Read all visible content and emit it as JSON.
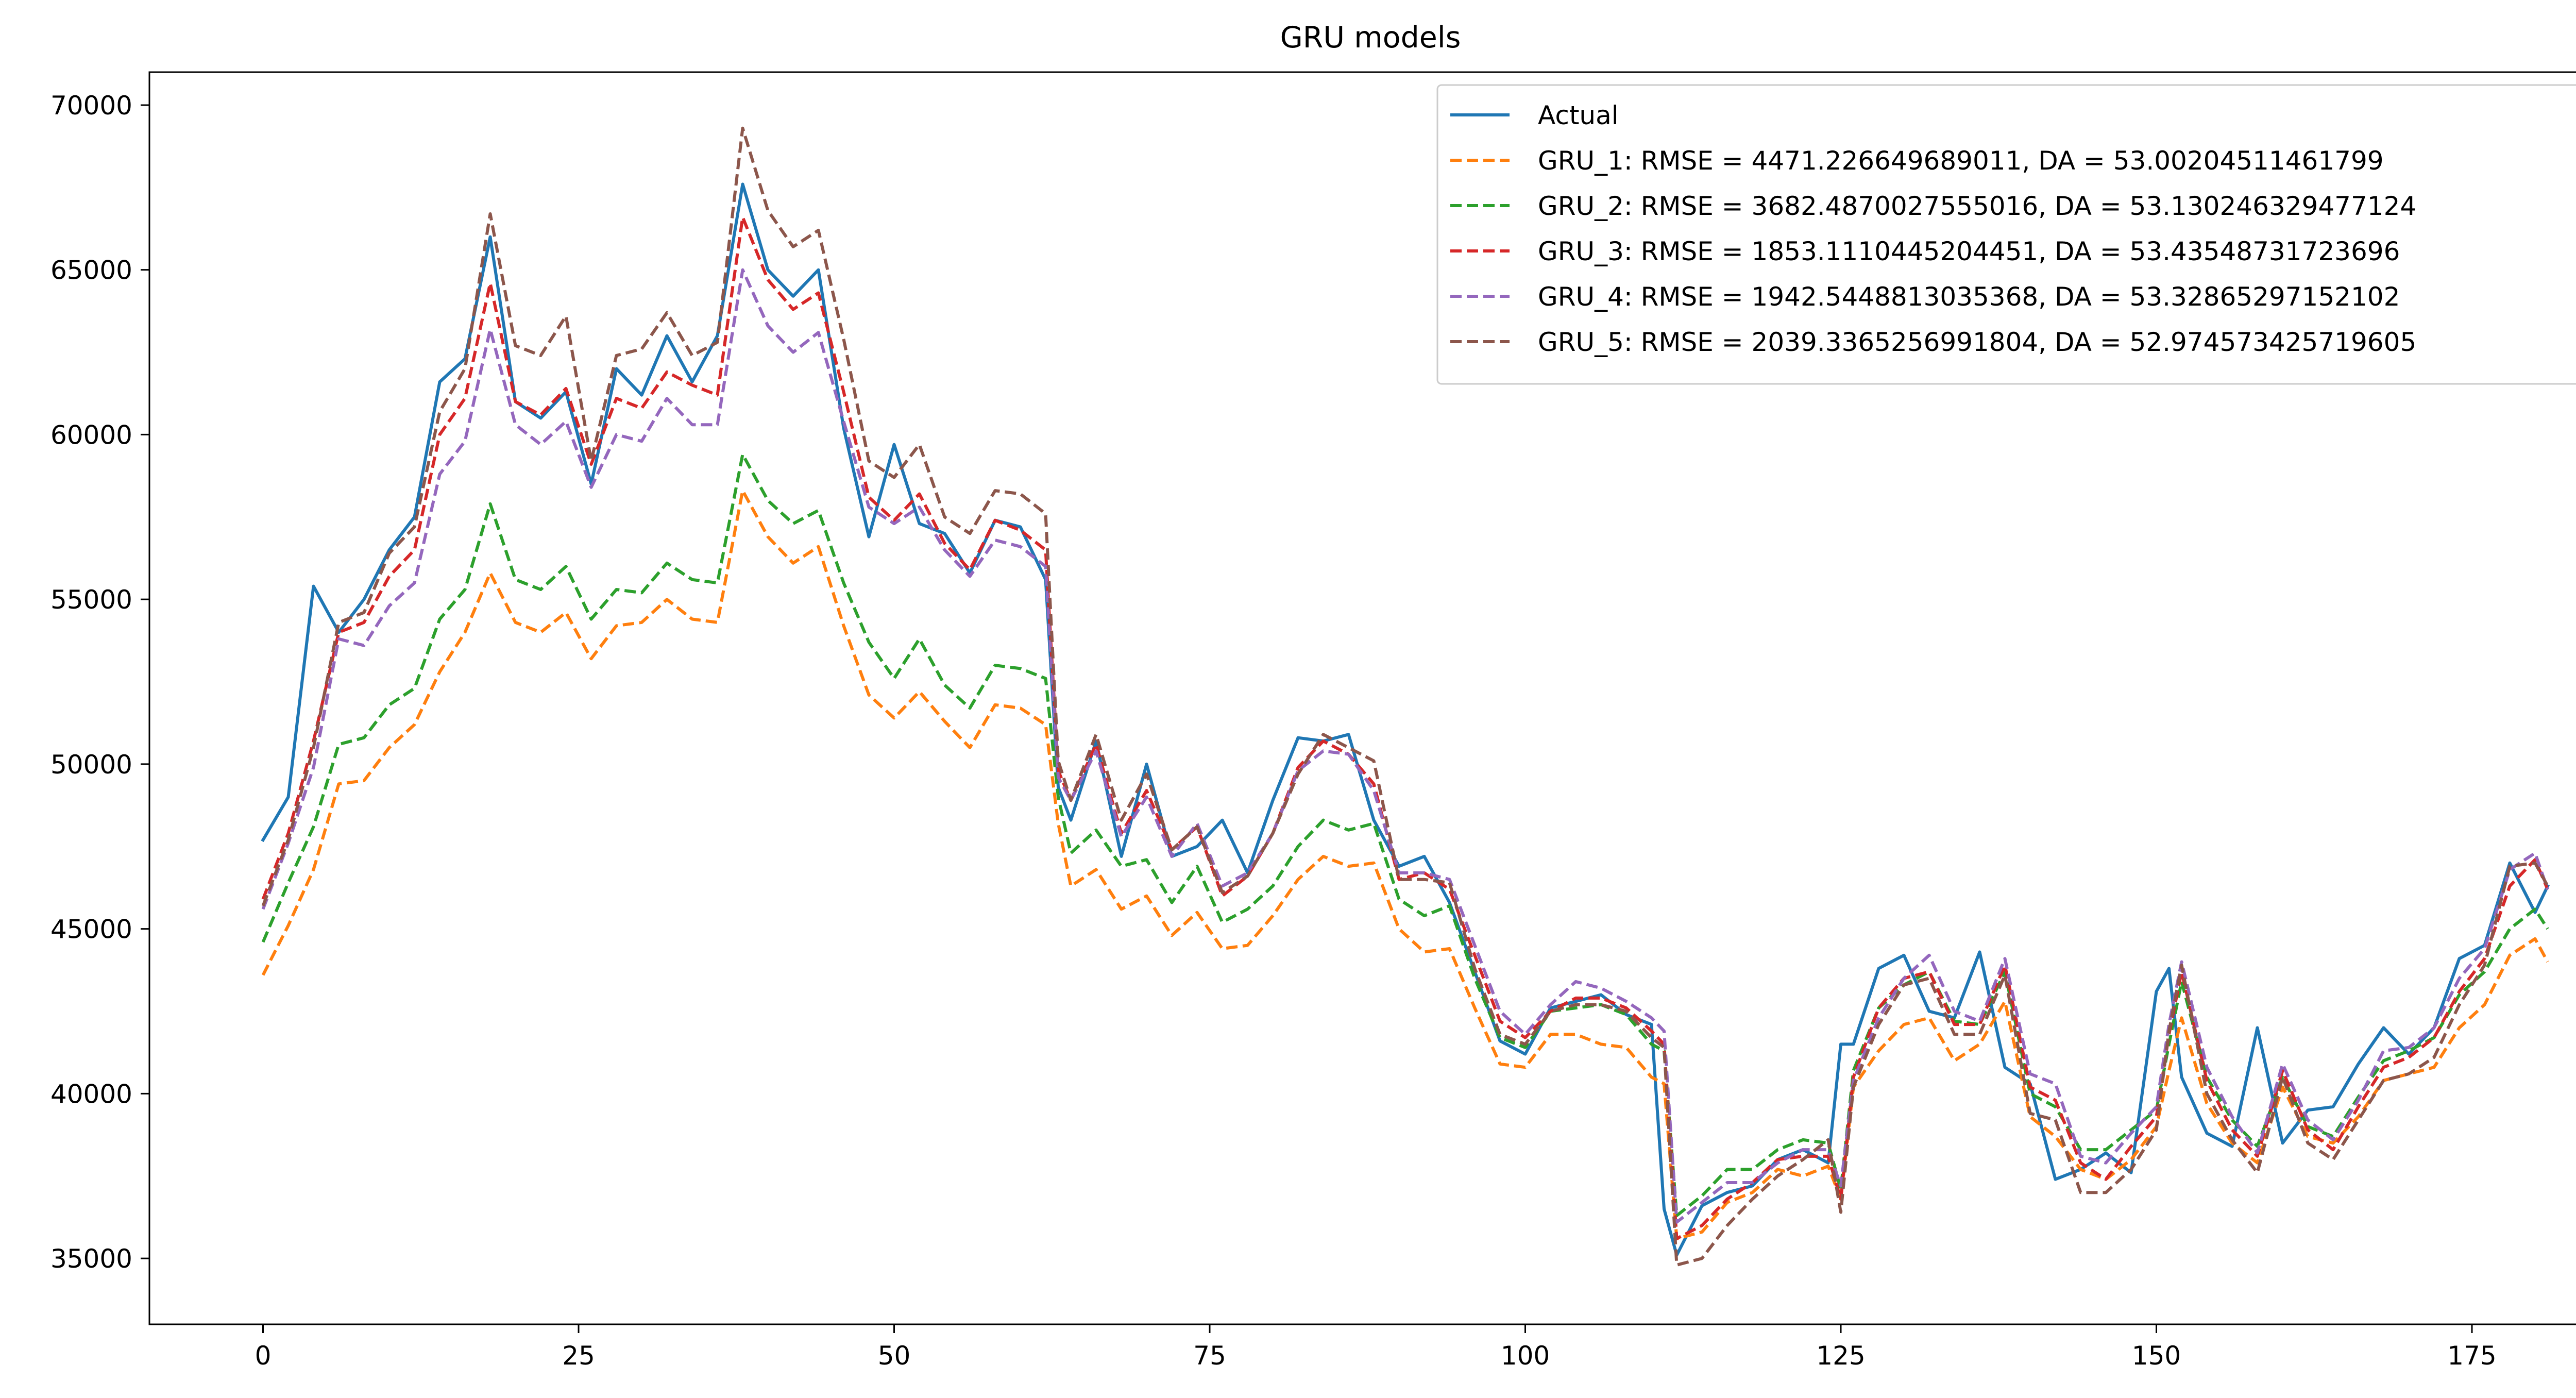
{
  "chart_data": {
    "type": "line",
    "title": "GRU models",
    "xlabel": "",
    "ylabel": "",
    "xlim": [
      -9,
      191
    ],
    "ylim": [
      33000,
      71000
    ],
    "xticks": [
      0,
      25,
      50,
      75,
      100,
      125,
      150,
      175
    ],
    "yticks": [
      35000,
      40000,
      45000,
      50000,
      55000,
      60000,
      65000,
      70000
    ],
    "grid": false,
    "legend_position": "top-right",
    "series": [
      {
        "name": "Actual",
        "color": "#1f77b4",
        "dash": "solid",
        "x": [
          0,
          2,
          4,
          6,
          8,
          10,
          12,
          14,
          16,
          18,
          20,
          22,
          24,
          26,
          28,
          30,
          32,
          34,
          36,
          38,
          40,
          42,
          44,
          46,
          48,
          50,
          52,
          54,
          56,
          58,
          60,
          62,
          63,
          64,
          66,
          68,
          70,
          72,
          74,
          76,
          78,
          80,
          82,
          84,
          86,
          88,
          90,
          92,
          94,
          96,
          98,
          100,
          102,
          104,
          106,
          108,
          110,
          111,
          112,
          114,
          116,
          118,
          120,
          122,
          124,
          125,
          126,
          128,
          130,
          132,
          134,
          136,
          138,
          140,
          142,
          144,
          146,
          148,
          150,
          151,
          152,
          154,
          156,
          158,
          160,
          162,
          164,
          166,
          168,
          170,
          172,
          174,
          176,
          178,
          180,
          181
        ],
        "values": [
          47700,
          49000,
          55400,
          54000,
          55000,
          56500,
          57500,
          61600,
          62300,
          66000,
          61000,
          60500,
          61300,
          58500,
          62000,
          61200,
          63000,
          61600,
          63000,
          67600,
          65000,
          64200,
          65000,
          60200,
          56900,
          59700,
          57300,
          57000,
          55800,
          57400,
          57200,
          55600,
          49300,
          48300,
          50700,
          47200,
          50000,
          47200,
          47500,
          48300,
          46700,
          48900,
          50800,
          50700,
          50900,
          48300,
          46900,
          47200,
          45800,
          43700,
          41600,
          41200,
          42600,
          42800,
          43000,
          42400,
          42100,
          36500,
          35100,
          36600,
          37000,
          37200,
          38000,
          38300,
          37900,
          41500,
          41500,
          43800,
          44200,
          42500,
          42300,
          44300,
          40800,
          40300,
          37400,
          37700,
          38200,
          37600,
          43100,
          43800,
          40500,
          38800,
          38400,
          42000,
          38500,
          39500,
          39600,
          40900,
          42000,
          41200,
          42000,
          44100,
          44500,
          47000,
          45500,
          46300
        ]
      },
      {
        "name": "GRU_1: RMSE = 4471.226649689011, DA = 53.00204511461799",
        "color": "#ff7f0e",
        "dash": "dashed",
        "x": [
          0,
          2,
          4,
          6,
          8,
          10,
          12,
          14,
          16,
          18,
          20,
          22,
          24,
          26,
          28,
          30,
          32,
          34,
          36,
          38,
          40,
          42,
          44,
          46,
          48,
          50,
          52,
          54,
          56,
          58,
          60,
          62,
          63,
          64,
          66,
          68,
          70,
          72,
          74,
          76,
          78,
          80,
          82,
          84,
          86,
          88,
          90,
          92,
          94,
          96,
          98,
          100,
          102,
          104,
          106,
          108,
          110,
          111,
          112,
          114,
          116,
          118,
          120,
          122,
          124,
          125,
          126,
          128,
          130,
          132,
          134,
          136,
          138,
          140,
          142,
          144,
          146,
          148,
          150,
          151,
          152,
          154,
          156,
          158,
          160,
          162,
          164,
          166,
          168,
          170,
          172,
          174,
          176,
          178,
          180,
          181
        ],
        "values": [
          43600,
          45100,
          46800,
          49400,
          49500,
          50500,
          51200,
          52800,
          54000,
          55800,
          54300,
          54000,
          54600,
          53200,
          54200,
          54300,
          55000,
          54400,
          54300,
          58300,
          56900,
          56100,
          56600,
          54200,
          52100,
          51400,
          52200,
          51300,
          50500,
          51800,
          51700,
          51200,
          48200,
          46300,
          46800,
          45600,
          46000,
          44800,
          45500,
          44400,
          44500,
          45400,
          46500,
          47200,
          46900,
          47000,
          45000,
          44300,
          44400,
          42600,
          40900,
          40800,
          41800,
          41800,
          41500,
          41400,
          40500,
          40300,
          35600,
          35800,
          36700,
          37000,
          37700,
          37500,
          37800,
          36800,
          40200,
          41300,
          42100,
          42300,
          41000,
          41500,
          42800,
          39300,
          38700,
          37700,
          37400,
          38000,
          39000,
          40700,
          42300,
          39700,
          38500,
          37900,
          40200,
          38700,
          38500,
          39300,
          40400,
          40600,
          40800,
          42000,
          42700,
          44200,
          44700,
          44000
        ]
      },
      {
        "name": "GRU_2: RMSE = 3682.4870027555016, DA = 53.130246329477124",
        "color": "#2ca02c",
        "dash": "dashed",
        "x": [
          0,
          2,
          4,
          6,
          8,
          10,
          12,
          14,
          16,
          18,
          20,
          22,
          24,
          26,
          28,
          30,
          32,
          34,
          36,
          38,
          40,
          42,
          44,
          46,
          48,
          50,
          52,
          54,
          56,
          58,
          60,
          62,
          63,
          64,
          66,
          68,
          70,
          72,
          74,
          76,
          78,
          80,
          82,
          84,
          86,
          88,
          90,
          92,
          94,
          96,
          98,
          100,
          102,
          104,
          106,
          108,
          110,
          111,
          112,
          114,
          116,
          118,
          120,
          122,
          124,
          125,
          126,
          128,
          130,
          132,
          134,
          136,
          138,
          140,
          142,
          144,
          146,
          148,
          150,
          151,
          152,
          154,
          156,
          158,
          160,
          162,
          164,
          166,
          168,
          170,
          172,
          174,
          176,
          178,
          180,
          181
        ],
        "values": [
          44600,
          46400,
          48100,
          50600,
          50800,
          51800,
          52300,
          54400,
          55300,
          57900,
          55600,
          55300,
          56000,
          54400,
          55300,
          55200,
          56100,
          55600,
          55500,
          59400,
          58000,
          57300,
          57700,
          55500,
          53700,
          52600,
          53800,
          52400,
          51700,
          53000,
          52900,
          52600,
          49000,
          47300,
          48000,
          46900,
          47100,
          45800,
          46900,
          45200,
          45600,
          46300,
          47500,
          48300,
          48000,
          48200,
          45900,
          45400,
          45700,
          43500,
          41700,
          41400,
          42500,
          42600,
          42700,
          42400,
          41500,
          41300,
          36300,
          36900,
          37700,
          37700,
          38300,
          38600,
          38500,
          37100,
          40700,
          42600,
          43300,
          43700,
          42200,
          42100,
          43700,
          40000,
          39600,
          38300,
          38300,
          38900,
          39500,
          41500,
          43400,
          40500,
          39200,
          38400,
          40500,
          39000,
          38700,
          39900,
          41000,
          41300,
          41700,
          43000,
          43700,
          45000,
          45600,
          45000
        ]
      },
      {
        "name": "GRU_3: RMSE = 1853.1110445204451, DA = 53.43548731723696",
        "color": "#d62728",
        "dash": "dashed",
        "x": [
          0,
          2,
          4,
          6,
          8,
          10,
          12,
          14,
          16,
          18,
          20,
          22,
          24,
          26,
          28,
          30,
          32,
          34,
          36,
          38,
          40,
          42,
          44,
          46,
          48,
          50,
          52,
          54,
          56,
          58,
          60,
          62,
          63,
          64,
          66,
          68,
          70,
          72,
          74,
          76,
          78,
          80,
          82,
          84,
          86,
          88,
          90,
          92,
          94,
          96,
          98,
          100,
          102,
          104,
          106,
          108,
          110,
          111,
          112,
          114,
          116,
          118,
          120,
          122,
          124,
          125,
          126,
          128,
          130,
          132,
          134,
          136,
          138,
          140,
          142,
          144,
          146,
          148,
          150,
          151,
          152,
          154,
          156,
          158,
          160,
          162,
          164,
          166,
          168,
          170,
          172,
          174,
          176,
          178,
          180,
          181
        ],
        "values": [
          45900,
          47900,
          50700,
          54000,
          54300,
          55700,
          56500,
          60000,
          61100,
          64600,
          61000,
          60600,
          61400,
          59100,
          61100,
          60800,
          61900,
          61500,
          61200,
          66600,
          64700,
          63800,
          64300,
          61300,
          58100,
          57400,
          58200,
          56700,
          55900,
          57400,
          57100,
          56500,
          49800,
          48900,
          50600,
          47900,
          49200,
          47400,
          48100,
          46000,
          46600,
          47900,
          49900,
          50700,
          50300,
          49400,
          46500,
          46700,
          46200,
          44200,
          42200,
          41700,
          42500,
          42900,
          42900,
          42600,
          41900,
          41500,
          35600,
          36000,
          36800,
          37300,
          38000,
          38100,
          38100,
          36800,
          40500,
          42600,
          43500,
          43700,
          42100,
          42100,
          43900,
          40200,
          39800,
          37900,
          37400,
          38400,
          39300,
          41800,
          43700,
          40400,
          38900,
          38100,
          40700,
          38900,
          38300,
          39600,
          40800,
          41100,
          41700,
          43100,
          44100,
          46300,
          47100,
          46200
        ]
      },
      {
        "name": "GRU_4: RMSE = 1942.5448813035368, DA = 53.32865297152102",
        "color": "#9467bd",
        "dash": "dashed",
        "x": [
          0,
          2,
          4,
          6,
          8,
          10,
          12,
          14,
          16,
          18,
          20,
          22,
          24,
          26,
          28,
          30,
          32,
          34,
          36,
          38,
          40,
          42,
          44,
          46,
          48,
          50,
          52,
          54,
          56,
          58,
          60,
          62,
          63,
          64,
          66,
          68,
          70,
          72,
          74,
          76,
          78,
          80,
          82,
          84,
          86,
          88,
          90,
          92,
          94,
          96,
          98,
          100,
          102,
          104,
          106,
          108,
          110,
          111,
          112,
          114,
          116,
          118,
          120,
          122,
          124,
          125,
          126,
          128,
          130,
          132,
          134,
          136,
          138,
          140,
          142,
          144,
          146,
          148,
          150,
          151,
          152,
          154,
          156,
          158,
          160,
          162,
          164,
          166,
          168,
          170,
          172,
          174,
          176,
          178,
          180,
          181
        ],
        "values": [
          45600,
          47600,
          49900,
          53800,
          53600,
          54800,
          55500,
          58800,
          59800,
          63200,
          60300,
          59700,
          60400,
          58400,
          60000,
          59800,
          61100,
          60300,
          60300,
          65000,
          63300,
          62500,
          63100,
          60400,
          57800,
          57300,
          57800,
          56500,
          55700,
          56800,
          56600,
          56000,
          49600,
          48900,
          50400,
          47800,
          49000,
          47200,
          48200,
          46300,
          46700,
          47900,
          49800,
          50400,
          50300,
          49200,
          46700,
          46700,
          46500,
          44500,
          42500,
          41800,
          42700,
          43400,
          43200,
          42800,
          42300,
          41900,
          36100,
          36700,
          37300,
          37300,
          37900,
          38300,
          38300,
          37200,
          40400,
          42300,
          43500,
          44200,
          42500,
          42200,
          44100,
          40600,
          40300,
          38100,
          37900,
          38800,
          39600,
          42100,
          44000,
          40800,
          39300,
          38200,
          40900,
          39200,
          38600,
          39800,
          41300,
          41400,
          42000,
          43500,
          44400,
          46800,
          47300,
          46200
        ]
      },
      {
        "name": "GRU_5: RMSE = 2039.3365256991804, DA = 52.974573425719605",
        "color": "#8c564b",
        "dash": "dashed",
        "x": [
          0,
          2,
          4,
          6,
          8,
          10,
          12,
          14,
          16,
          18,
          20,
          22,
          24,
          26,
          28,
          30,
          32,
          34,
          36,
          38,
          40,
          42,
          44,
          46,
          48,
          50,
          52,
          54,
          56,
          58,
          60,
          62,
          63,
          64,
          66,
          68,
          70,
          72,
          74,
          76,
          78,
          80,
          82,
          84,
          86,
          88,
          90,
          92,
          94,
          96,
          98,
          100,
          102,
          104,
          106,
          108,
          110,
          111,
          112,
          114,
          116,
          118,
          120,
          122,
          124,
          125,
          126,
          128,
          130,
          132,
          134,
          136,
          138,
          140,
          142,
          144,
          146,
          148,
          150,
          151,
          152,
          154,
          156,
          158,
          160,
          162,
          164,
          166,
          168,
          170,
          172,
          174,
          176,
          178,
          180,
          181
        ],
        "values": [
          45700,
          47700,
          50500,
          54300,
          54600,
          56400,
          57200,
          60700,
          62000,
          66700,
          62700,
          62400,
          63600,
          59200,
          62400,
          62600,
          63700,
          62400,
          62800,
          69300,
          66800,
          65700,
          66200,
          62900,
          59200,
          58700,
          59700,
          57500,
          57000,
          58300,
          58200,
          57600,
          50100,
          48900,
          50900,
          48300,
          49700,
          47400,
          48100,
          46100,
          46600,
          47900,
          49700,
          50900,
          50500,
          50100,
          46500,
          46500,
          46400,
          43800,
          41800,
          41500,
          42500,
          42700,
          42700,
          42500,
          41700,
          41400,
          34800,
          35000,
          36000,
          36800,
          37500,
          38000,
          38600,
          36400,
          40200,
          42100,
          43300,
          43500,
          41800,
          41800,
          43600,
          39400,
          39200,
          37000,
          37000,
          37700,
          38900,
          41900,
          43900,
          40000,
          38600,
          37600,
          40500,
          38500,
          38000,
          39200,
          40400,
          40600,
          41100,
          42700,
          43900,
          46900,
          47000,
          46300
        ]
      }
    ]
  }
}
